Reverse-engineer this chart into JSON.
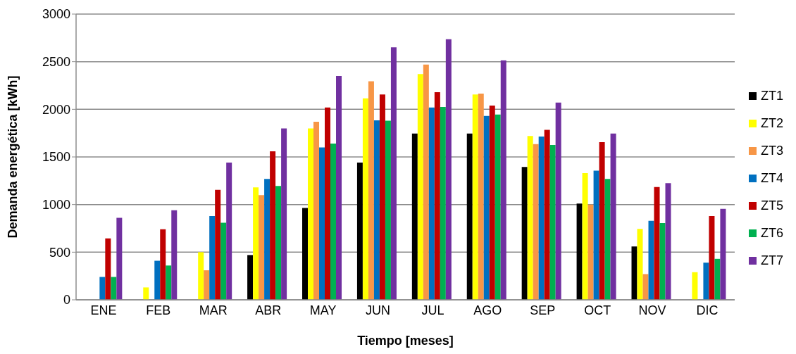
{
  "chart_data": {
    "type": "bar",
    "xlabel": "Tiempo [meses]",
    "ylabel": "Demanda energética [kWh]",
    "categories": [
      "ENE",
      "FEB",
      "MAR",
      "ABR",
      "MAY",
      "JUN",
      "JUL",
      "AGO",
      "SEP",
      "OCT",
      "NOV",
      "DIC"
    ],
    "series": [
      {
        "name": "ZT1",
        "color": "#000000",
        "values": [
          0,
          0,
          0,
          470,
          965,
          1440,
          1745,
          1745,
          1395,
          1010,
          560,
          0
        ]
      },
      {
        "name": "ZT2",
        "color": "#ffff00",
        "values": [
          null,
          130,
          500,
          1180,
          1800,
          2115,
          2370,
          2155,
          1720,
          1330,
          745,
          290
        ]
      },
      {
        "name": "ZT3",
        "color": "#f79646",
        "values": [
          0,
          0,
          310,
          1100,
          1870,
          2295,
          2470,
          2165,
          1635,
          1000,
          270,
          0
        ]
      },
      {
        "name": "ZT4",
        "color": "#0070c0",
        "values": [
          240,
          410,
          880,
          1270,
          1600,
          1885,
          2020,
          1930,
          1715,
          1355,
          830,
          390
        ]
      },
      {
        "name": "ZT5",
        "color": "#c00000",
        "values": [
          645,
          740,
          1155,
          1560,
          2020,
          2155,
          2180,
          2040,
          1785,
          1655,
          1185,
          880
        ]
      },
      {
        "name": "ZT6",
        "color": "#00b050",
        "values": [
          240,
          360,
          810,
          1195,
          1640,
          1880,
          2025,
          1945,
          1625,
          1270,
          805,
          430
        ]
      },
      {
        "name": "ZT7",
        "color": "#7030a0",
        "values": [
          860,
          940,
          1440,
          1800,
          2350,
          2650,
          2735,
          2515,
          2070,
          1745,
          1225,
          955
        ]
      }
    ],
    "ylim": [
      0,
      3000
    ],
    "yticks": [
      0,
      500,
      1000,
      1500,
      2000,
      2500,
      3000
    ],
    "grid": "y",
    "legend": "right"
  }
}
